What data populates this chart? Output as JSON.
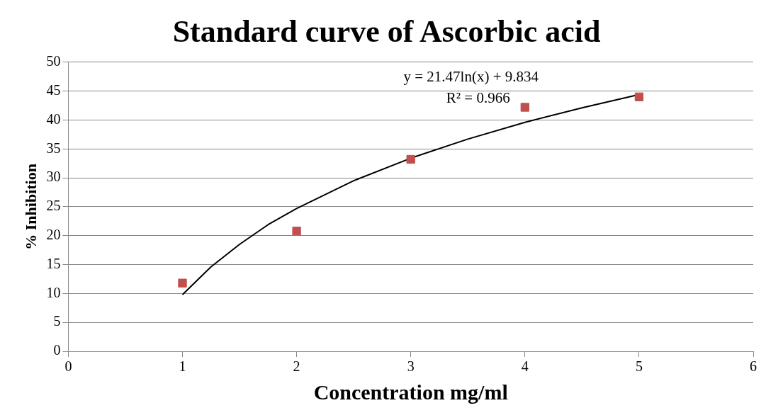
{
  "chart_data": {
    "type": "scatter",
    "title": "Standard curve of Ascorbic acid",
    "xlabel": "Concentration mg/ml",
    "ylabel": "% Inhibition",
    "xlim": [
      0,
      6
    ],
    "xticks": [
      0,
      1,
      2,
      3,
      4,
      5,
      6
    ],
    "ylim": [
      0,
      50
    ],
    "yticks": [
      0,
      5,
      10,
      15,
      20,
      25,
      30,
      35,
      40,
      45,
      50
    ],
    "grid": "y",
    "legend": false,
    "marker": "square",
    "series": [
      {
        "type": "scatter",
        "color": "#c0504d",
        "x": [
          1,
          2,
          3,
          4,
          5
        ],
        "values": [
          11.8,
          20.8,
          33.2,
          42.2,
          44.0
        ]
      },
      {
        "type": "line",
        "color": "#000000",
        "marker": "none",
        "x": [
          1,
          1.25,
          1.5,
          1.75,
          2,
          2.5,
          3,
          3.5,
          4,
          4.5,
          5
        ],
        "values": [
          9.8,
          14.6,
          18.5,
          21.9,
          24.7,
          29.5,
          33.4,
          36.7,
          39.6,
          42.1,
          44.4
        ]
      }
    ],
    "annotations": [
      "y = 21.47ln(x) + 9.834",
      "R² = 0.966"
    ]
  }
}
